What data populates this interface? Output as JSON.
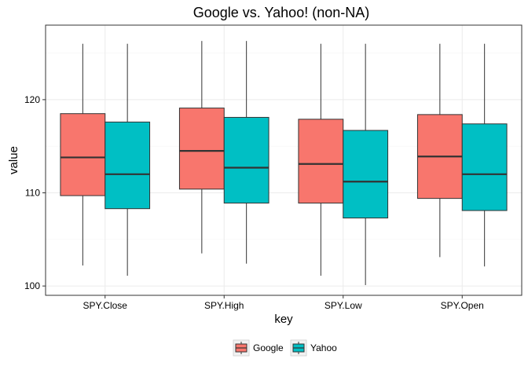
{
  "chart_data": {
    "type": "boxplot",
    "title": "Google vs. Yahoo! (non-NA)",
    "xlabel": "key",
    "ylabel": "value",
    "ylim": [
      99,
      128
    ],
    "yticks": [
      100,
      110,
      120
    ],
    "grid": true,
    "legend_position": "bottom",
    "categories": [
      "SPY.Close",
      "SPY.High",
      "SPY.Low",
      "SPY.Open"
    ],
    "series": [
      {
        "name": "Google",
        "color": "#F8766D",
        "boxes": [
          {
            "min": 102.2,
            "q1": 109.7,
            "median": 113.8,
            "q3": 118.5,
            "max": 126.0
          },
          {
            "min": 103.5,
            "q1": 110.4,
            "median": 114.5,
            "q3": 119.1,
            "max": 126.3
          },
          {
            "min": 101.1,
            "q1": 108.9,
            "median": 113.1,
            "q3": 117.9,
            "max": 126.0
          },
          {
            "min": 103.1,
            "q1": 109.4,
            "median": 113.9,
            "q3": 118.4,
            "max": 126.0
          }
        ]
      },
      {
        "name": "Yahoo",
        "color": "#00BFC4",
        "boxes": [
          {
            "min": 101.1,
            "q1": 108.3,
            "median": 112.0,
            "q3": 117.6,
            "max": 126.0
          },
          {
            "min": 102.4,
            "q1": 108.9,
            "median": 112.7,
            "q3": 118.1,
            "max": 126.3
          },
          {
            "min": 100.1,
            "q1": 107.3,
            "median": 111.2,
            "q3": 116.7,
            "max": 126.0
          },
          {
            "min": 102.1,
            "q1": 108.1,
            "median": 112.0,
            "q3": 117.4,
            "max": 126.0
          }
        ]
      }
    ]
  }
}
